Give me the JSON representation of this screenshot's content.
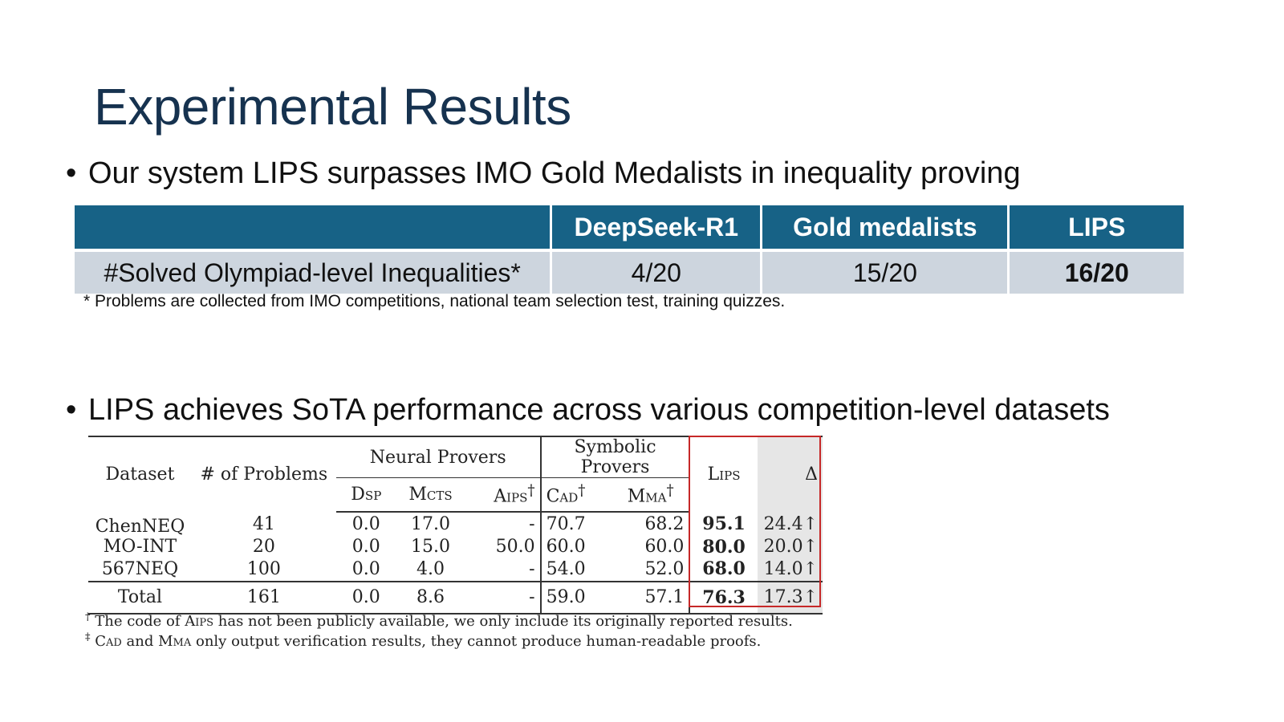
{
  "slide": {
    "title": "Experimental Results",
    "bullet1": "Our system LIPS surpasses IMO Gold Medalists in inequality proving",
    "bullet2": "LIPS achieves SoTA performance across various competition-level datasets",
    "bullet_glyph": "•"
  },
  "table1": {
    "headers": [
      "",
      "DeepSeek-R1",
      "Gold medalists",
      "LIPS"
    ],
    "row": [
      "#Solved Olympiad-level Inequalities*",
      "4/20",
      "15/20",
      "16/20"
    ],
    "note": "* Problems are collected from IMO competitions, national team selection test, training quizzes.",
    "header_color": "#176286",
    "row_color": "#cdd5de"
  },
  "table2": {
    "col_dataset": "Dataset",
    "col_problems": "# of Problems",
    "group_neural": "Neural Provers",
    "group_symbolic": "Symbolic Provers",
    "col_lips": "Lips",
    "col_delta": "Δ",
    "sub_dsp": "Dsp",
    "sub_mcts": "Mcts",
    "sub_aips": "Aips",
    "sub_cad": "Cad",
    "sub_mma": "Mma",
    "dagger": "†",
    "rows": [
      {
        "dataset": "ChenNEQ",
        "problems": "41",
        "dsp": "0.0",
        "mcts": "17.0",
        "aips": "-",
        "cad": "70.7",
        "mma": "68.2",
        "lips": "95.1",
        "delta": "24.4↑"
      },
      {
        "dataset": "MO-INT",
        "problems": "20",
        "dsp": "0.0",
        "mcts": "15.0",
        "aips": "50.0",
        "cad": "60.0",
        "mma": "60.0",
        "lips": "80.0",
        "delta": "20.0↑"
      },
      {
        "dataset": "567NEQ",
        "problems": "100",
        "dsp": "0.0",
        "mcts": "4.0",
        "aips": "-",
        "cad": "54.0",
        "mma": "52.0",
        "lips": "68.0",
        "delta": "14.0↑"
      }
    ],
    "total": {
      "dataset": "Total",
      "problems": "161",
      "dsp": "0.0",
      "mcts": "8.6",
      "aips": "-",
      "cad": "59.0",
      "mma": "57.1",
      "lips": "76.3",
      "delta": "17.3↑"
    },
    "footnote1_mark": "†",
    "footnote1_a": "The code of ",
    "footnote1_b": "Aips",
    "footnote1_c": " has not been publicly available, we only include its originally reported results.",
    "footnote2_mark": "‡",
    "footnote2_a": "Cad",
    "footnote2_b": " and ",
    "footnote2_c": "Mma",
    "footnote2_d": " only output verification results, they cannot produce human-readable proofs.",
    "highlight_color": "#c62828"
  }
}
